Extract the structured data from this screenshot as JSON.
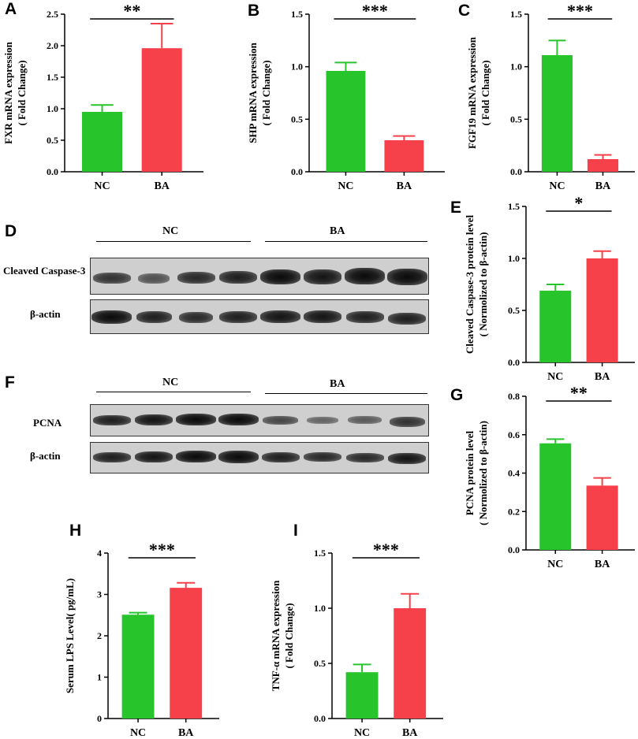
{
  "colors": {
    "nc": "#27c42b",
    "ba": "#f7414a",
    "axis": "#000000"
  },
  "panels": {
    "A": "A",
    "B": "B",
    "C": "C",
    "D": "D",
    "E": "E",
    "F": "F",
    "G": "G",
    "H": "H",
    "I": "I"
  },
  "blots": {
    "D": {
      "groups": [
        "NC",
        "BA"
      ],
      "rows": [
        "Cleaved Caspase-3",
        "β-actin"
      ]
    },
    "F": {
      "groups": [
        "NC",
        "BA"
      ],
      "rows": [
        "PCNA",
        "β-actin"
      ]
    }
  },
  "chart_data": [
    {
      "id": "A",
      "type": "bar",
      "categories": [
        "NC",
        "BA"
      ],
      "values": [
        0.95,
        1.96
      ],
      "errors": [
        0.11,
        0.39
      ],
      "ylabel": [
        "FXR mRNA expression",
        "( Fold Change)"
      ],
      "ylim": [
        0,
        2.5
      ],
      "ticks": [
        "0.0",
        "0.5",
        "1.0",
        "1.5",
        "2.0",
        "2.5"
      ],
      "significance": "**"
    },
    {
      "id": "B",
      "type": "bar",
      "categories": [
        "NC",
        "BA"
      ],
      "values": [
        0.96,
        0.3
      ],
      "errors": [
        0.08,
        0.04
      ],
      "ylabel": [
        "SHP mRNA expression",
        "( Fold Change)"
      ],
      "ylim": [
        0,
        1.5
      ],
      "ticks": [
        "0.0",
        "0.5",
        "1.0",
        "1.5"
      ],
      "significance": "***"
    },
    {
      "id": "C",
      "type": "bar",
      "categories": [
        "NC",
        "BA"
      ],
      "values": [
        1.11,
        0.12
      ],
      "errors": [
        0.14,
        0.04
      ],
      "ylabel": [
        "FGF19 mRNA expression",
        "( Fold Change)"
      ],
      "ylim": [
        0,
        1.5
      ],
      "ticks": [
        "0.0",
        "0.5",
        "1.0",
        "1.5"
      ],
      "significance": "***"
    },
    {
      "id": "E",
      "type": "bar",
      "categories": [
        "NC",
        "BA"
      ],
      "values": [
        0.69,
        1.0
      ],
      "errors": [
        0.06,
        0.07
      ],
      "ylabel": [
        "Cleaved Caspase-3 protein level",
        "( Normolized to β-actin)"
      ],
      "ylim": [
        0,
        1.5
      ],
      "ticks": [
        "0.0",
        "0.5",
        "1.0",
        "1.5"
      ],
      "significance": "*"
    },
    {
      "id": "G",
      "type": "bar",
      "categories": [
        "NC",
        "BA"
      ],
      "values": [
        0.555,
        0.335
      ],
      "errors": [
        0.022,
        0.04
      ],
      "ylabel": [
        "PCNA protein level",
        "( Normolized to β-actin)"
      ],
      "ylim": [
        0,
        0.8
      ],
      "ticks": [
        "0.0",
        "0.2",
        "0.4",
        "0.6",
        "0.8"
      ],
      "significance": "**"
    },
    {
      "id": "H",
      "type": "bar",
      "categories": [
        "NC",
        "BA"
      ],
      "values": [
        2.51,
        3.16
      ],
      "errors": [
        0.05,
        0.12
      ],
      "ylabel": [
        "Serum LPS Level( pg/mL)"
      ],
      "ylim": [
        0,
        4
      ],
      "ticks": [
        "0",
        "1",
        "2",
        "3",
        "4"
      ],
      "significance": "***"
    },
    {
      "id": "I",
      "type": "bar",
      "categories": [
        "NC",
        "BA"
      ],
      "values": [
        0.42,
        1.0
      ],
      "errors": [
        0.07,
        0.13
      ],
      "ylabel": [
        "TNF-α mRNA expression",
        "( Fold Change)"
      ],
      "ylim": [
        0,
        1.5
      ],
      "ticks": [
        "0.0",
        "0.5",
        "1.0",
        "1.5"
      ],
      "significance": "***"
    }
  ]
}
